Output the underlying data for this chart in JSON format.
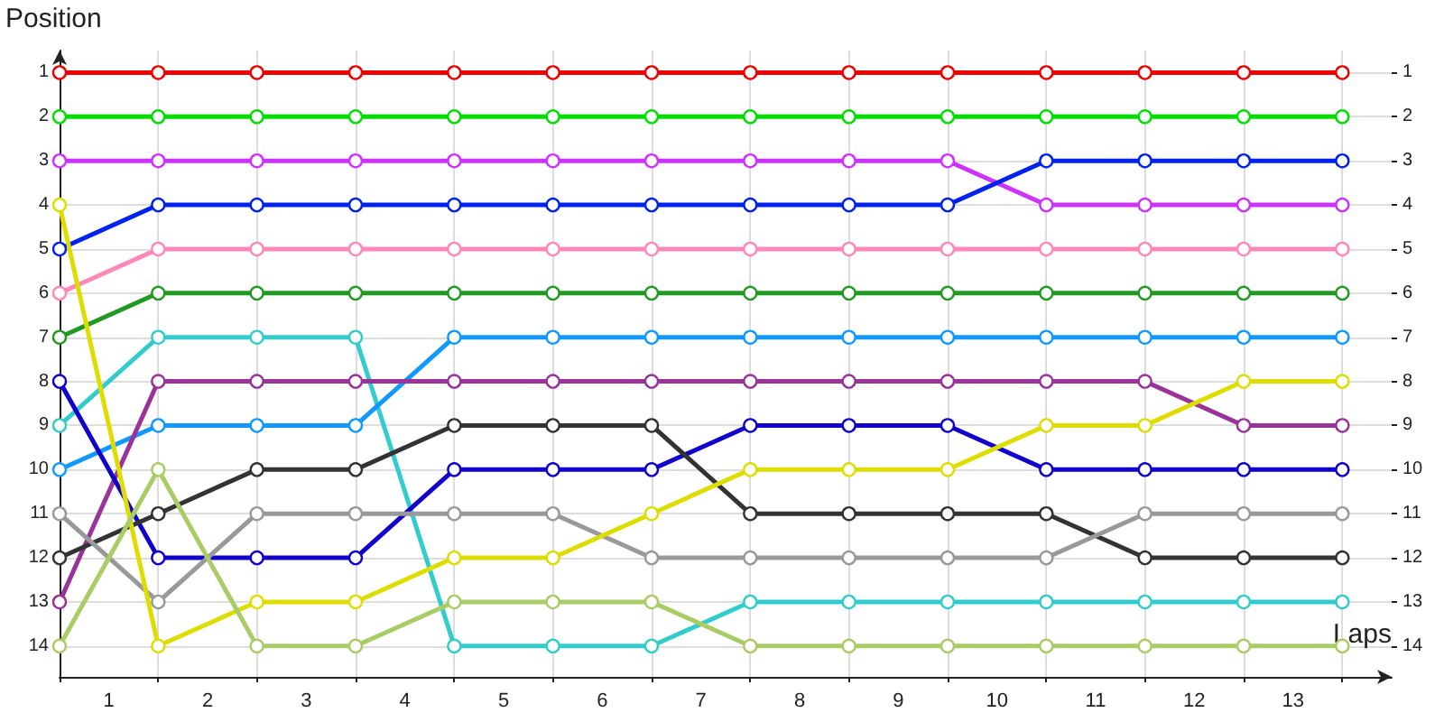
{
  "chart_data": {
    "type": "line",
    "xlabel": "Laps",
    "ylabel": "Position",
    "marker": "circle",
    "line_style": "solid",
    "grid": true,
    "x": [
      0,
      1,
      2,
      3,
      4,
      5,
      6,
      7,
      8,
      9,
      10,
      11,
      12,
      13
    ],
    "xlim": [
      0,
      13.5
    ],
    "xticks": [
      {
        "value": 0,
        "label": null
      },
      {
        "value": 0.5,
        "label": "1"
      },
      {
        "value": 1,
        "label": null
      },
      {
        "value": 1.5,
        "label": "2"
      },
      {
        "value": 2,
        "label": null
      },
      {
        "value": 2.5,
        "label": "3"
      },
      {
        "value": 3,
        "label": null
      },
      {
        "value": 3.5,
        "label": "4"
      },
      {
        "value": 4,
        "label": null
      },
      {
        "value": 4.5,
        "label": "5"
      },
      {
        "value": 5,
        "label": null
      },
      {
        "value": 5.5,
        "label": "6"
      },
      {
        "value": 6,
        "label": null
      },
      {
        "value": 6.5,
        "label": "7"
      },
      {
        "value": 7,
        "label": null
      },
      {
        "value": 7.5,
        "label": "8"
      },
      {
        "value": 8,
        "label": null
      },
      {
        "value": 8.5,
        "label": "9"
      },
      {
        "value": 9,
        "label": null
      },
      {
        "value": 9.5,
        "label": "10"
      },
      {
        "value": 10,
        "label": null
      },
      {
        "value": 10.5,
        "label": "11"
      },
      {
        "value": 11,
        "label": null
      },
      {
        "value": 11.5,
        "label": "12"
      },
      {
        "value": 12,
        "label": null
      },
      {
        "value": 12.5,
        "label": "13"
      },
      {
        "value": 13,
        "label": null
      }
    ],
    "ylim": [
      14.7,
      0.5
    ],
    "yticks": [
      1,
      2,
      3,
      4,
      5,
      6,
      7,
      8,
      9,
      10,
      11,
      12,
      13,
      14
    ],
    "y2lim": [
      14.7,
      0.5
    ],
    "y2ticks": [
      1,
      2,
      3,
      4,
      5,
      6,
      7,
      8,
      9,
      10,
      11,
      12,
      13,
      14
    ],
    "series": [
      {
        "color": "#ee0000",
        "values": [
          1,
          1,
          1,
          1,
          1,
          1,
          1,
          1,
          1,
          1,
          1,
          1,
          1,
          1
        ]
      },
      {
        "color": "#00dd00",
        "values": [
          2,
          2,
          2,
          2,
          2,
          2,
          2,
          2,
          2,
          2,
          2,
          2,
          2,
          2
        ]
      },
      {
        "color": "#cc33ff",
        "values": [
          3,
          3,
          3,
          3,
          3,
          3,
          3,
          3,
          3,
          3,
          4,
          4,
          4,
          4
        ]
      },
      {
        "color": "#0022ee",
        "values": [
          5,
          4,
          4,
          4,
          4,
          4,
          4,
          4,
          4,
          4,
          3,
          3,
          3,
          3
        ]
      },
      {
        "color": "#ff88bb",
        "values": [
          6,
          5,
          5,
          5,
          5,
          5,
          5,
          5,
          5,
          5,
          5,
          5,
          5,
          5
        ]
      },
      {
        "color": "#229922",
        "values": [
          7,
          6,
          6,
          6,
          6,
          6,
          6,
          6,
          6,
          6,
          6,
          6,
          6,
          6
        ]
      },
      {
        "color": "#33cccc",
        "values": [
          9,
          7,
          7,
          7,
          14,
          14,
          14,
          13,
          13,
          13,
          13,
          13,
          13,
          13
        ]
      },
      {
        "color": "#1199ff",
        "values": [
          10,
          9,
          9,
          9,
          7,
          7,
          7,
          7,
          7,
          7,
          7,
          7,
          7,
          7
        ]
      },
      {
        "color": "#993399",
        "values": [
          13,
          8,
          8,
          8,
          8,
          8,
          8,
          8,
          8,
          8,
          8,
          8,
          9,
          9
        ]
      },
      {
        "color": "#1100cc",
        "values": [
          8,
          12,
          12,
          12,
          10,
          10,
          10,
          9,
          9,
          9,
          10,
          10,
          10,
          10
        ]
      },
      {
        "color": "#333333",
        "values": [
          12,
          11,
          10,
          10,
          9,
          9,
          9,
          11,
          11,
          11,
          11,
          12,
          12,
          12
        ]
      },
      {
        "color": "#999999",
        "values": [
          11,
          13,
          11,
          11,
          11,
          11,
          12,
          12,
          12,
          12,
          12,
          11,
          11,
          11
        ]
      },
      {
        "color": "#dddd00",
        "values": [
          4,
          14,
          13,
          13,
          12,
          12,
          11,
          10,
          10,
          10,
          9,
          9,
          8,
          8
        ]
      },
      {
        "color": "#aacc66",
        "values": [
          14,
          10,
          14,
          14,
          13,
          13,
          13,
          14,
          14,
          14,
          14,
          14,
          14,
          14
        ]
      }
    ]
  }
}
